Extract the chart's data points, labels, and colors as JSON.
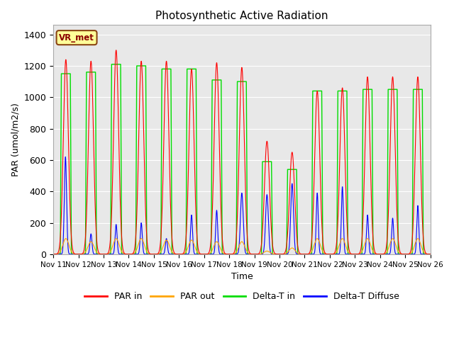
{
  "title": "Photosynthetic Active Radiation",
  "ylabel": "PAR (umol/m2/s)",
  "xlabel": "Time",
  "ylim": [
    0,
    1460
  ],
  "yticks": [
    0,
    200,
    400,
    600,
    800,
    1000,
    1200,
    1400
  ],
  "xtick_labels": [
    "Nov 11",
    "Nov 12",
    "Nov 13",
    "Nov 14",
    "Nov 15",
    "Nov 16",
    "Nov 17",
    "Nov 18",
    "Nov 19",
    "Nov 20",
    "Nov 21",
    "Nov 22",
    "Nov 23",
    "Nov 24",
    "Nov 25",
    "Nov 26"
  ],
  "label_box": "VR_met",
  "colors": {
    "par_in": "#ff0000",
    "par_out": "#ffa500",
    "delta_t_in": "#00dd00",
    "delta_t_diffuse": "#0000ff"
  },
  "background_gray": "#e8e8e8",
  "legend_labels": [
    "PAR in",
    "PAR out",
    "Delta-T in",
    "Delta-T Diffuse"
  ],
  "legend_colors": [
    "#ff0000",
    "#ffa500",
    "#00dd00",
    "#0000ff"
  ],
  "par_in_peaks": [
    1240,
    1230,
    1300,
    1230,
    1230,
    1180,
    1220,
    1190,
    720,
    650,
    1040,
    1060,
    1130,
    1130,
    1130
  ],
  "par_out_peaks": [
    100,
    80,
    100,
    100,
    90,
    90,
    80,
    80,
    20,
    40,
    100,
    100,
    100,
    100,
    100
  ],
  "delta_t_in_peaks": [
    1150,
    1160,
    1210,
    1200,
    1180,
    1180,
    1110,
    1100,
    590,
    540,
    1040,
    1040,
    1050,
    1050,
    1050
  ],
  "delta_t_diffuse_peaks": [
    620,
    130,
    190,
    200,
    100,
    250,
    280,
    390,
    380,
    450,
    390,
    430,
    250,
    230,
    310
  ]
}
